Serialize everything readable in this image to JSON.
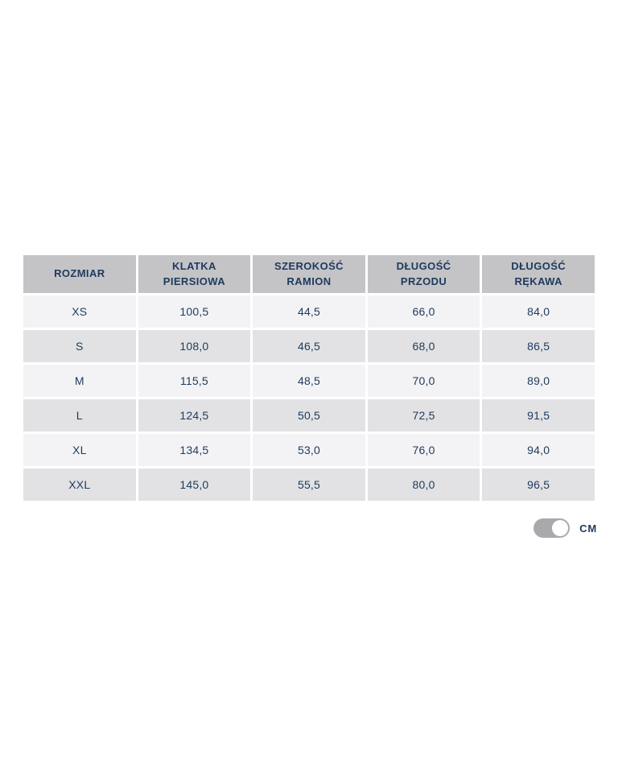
{
  "table": {
    "columns": [
      "ROZMIAR",
      "KLATKA PIERSIOWA",
      "SZEROKOŚĆ RAMION",
      "DŁUGOŚĆ PRZODU",
      "DŁUGOŚĆ RĘKAWA"
    ],
    "rows": [
      {
        "size": "XS",
        "values": [
          "100,5",
          "44,5",
          "66,0",
          "84,0"
        ]
      },
      {
        "size": "S",
        "values": [
          "108,0",
          "46,5",
          "68,0",
          "86,5"
        ]
      },
      {
        "size": "M",
        "values": [
          "115,5",
          "48,5",
          "70,0",
          "89,0"
        ]
      },
      {
        "size": "L",
        "values": [
          "124,5",
          "50,5",
          "72,5",
          "91,5"
        ]
      },
      {
        "size": "XL",
        "values": [
          "134,5",
          "53,0",
          "76,0",
          "94,0"
        ]
      },
      {
        "size": "XXL",
        "values": [
          "145,0",
          "55,5",
          "80,0",
          "96,5"
        ]
      }
    ]
  },
  "unit_toggle": {
    "label": "CM",
    "state": "on"
  },
  "colors": {
    "header_bg": "#c4c4c7",
    "row_light": "#f3f3f5",
    "row_dark": "#e2e2e4",
    "text_navy": "#1e3a5c",
    "toggle_bg": "#a9a9ad",
    "knob": "#ffffff",
    "page_bg": "#ffffff"
  }
}
